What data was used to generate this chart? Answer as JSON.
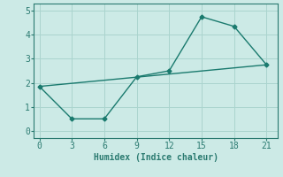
{
  "xlabel": "Humidex (Indice chaleur)",
  "ylabel": "",
  "background_color": "#cceae6",
  "grid_color": "#aad4ce",
  "line_color": "#1a7a6e",
  "spine_color": "#2a7a70",
  "xlim": [
    -0.5,
    22
  ],
  "ylim": [
    -0.3,
    5.3
  ],
  "xticks": [
    0,
    3,
    6,
    9,
    12,
    15,
    18,
    21
  ],
  "yticks": [
    0,
    1,
    2,
    3,
    4,
    5
  ],
  "line1_x": [
    0,
    3,
    6,
    9,
    12,
    15,
    18,
    21
  ],
  "line1_y": [
    1.85,
    0.5,
    0.5,
    2.25,
    2.5,
    4.75,
    4.35,
    2.75
  ],
  "line2_x": [
    0,
    21
  ],
  "line2_y": [
    1.85,
    2.75
  ],
  "marker": "D",
  "marker_size": 2.5,
  "line_width": 1.0,
  "font_size_label": 7,
  "font_size_tick": 7
}
